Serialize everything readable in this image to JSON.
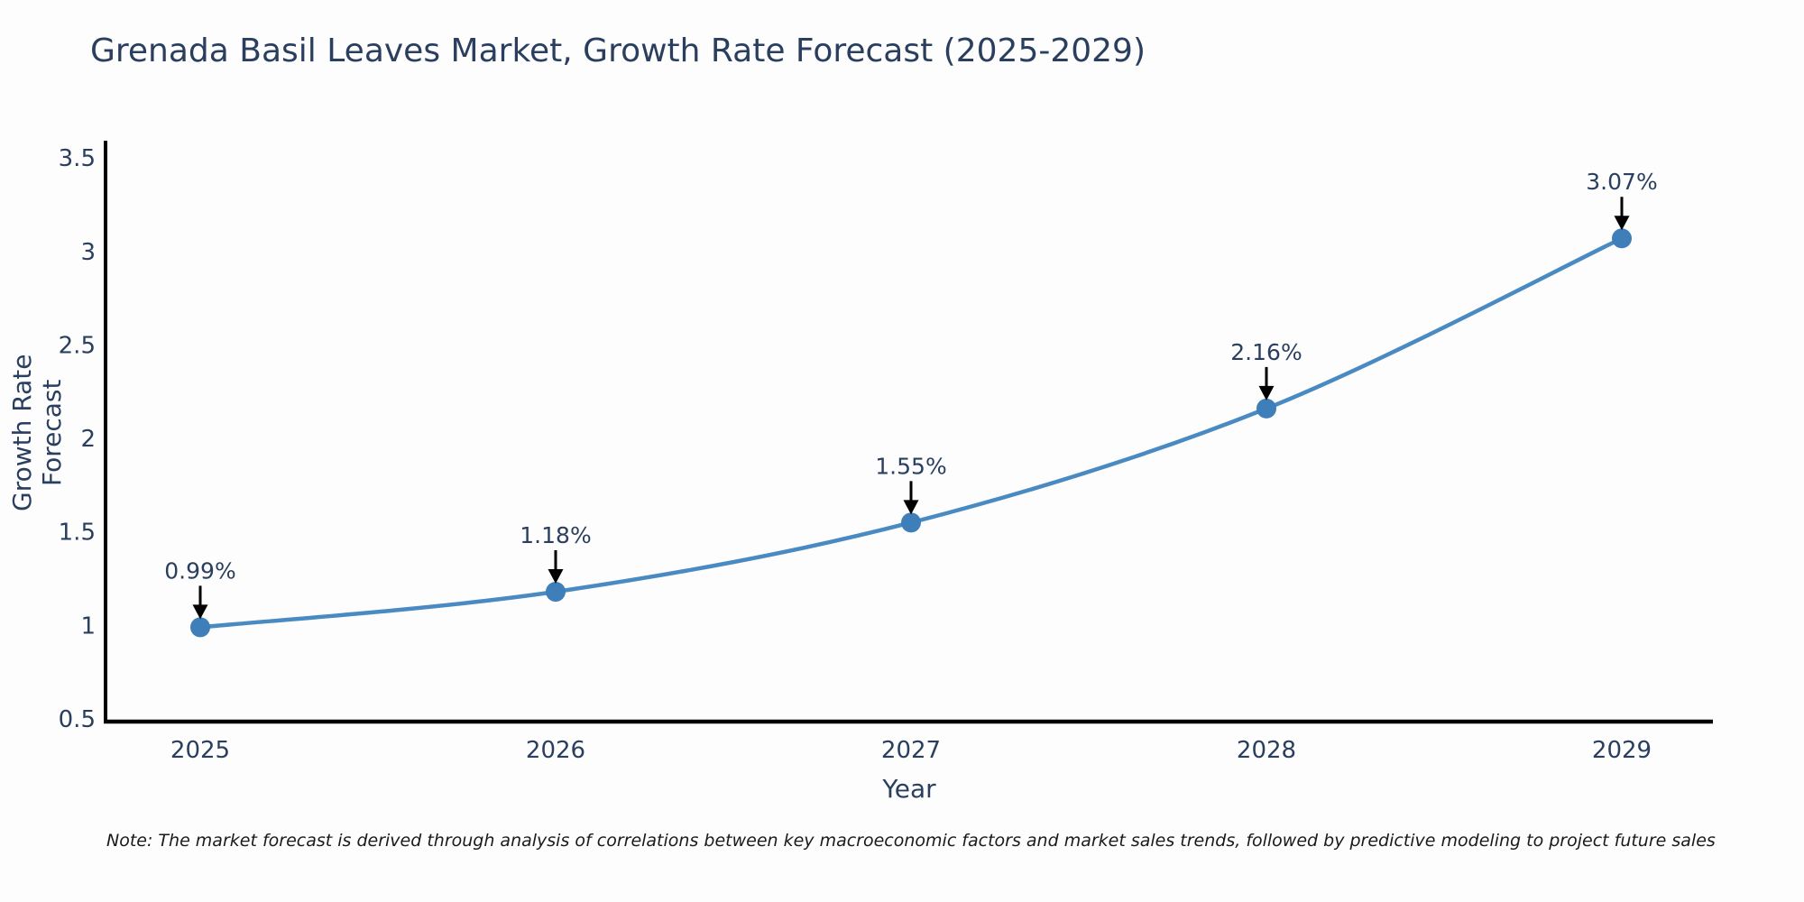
{
  "page": {
    "background": "#fdfdfd"
  },
  "note": "Note: The market forecast is derived through analysis of correlations between key macroeconomic factors and market sales trends, followed by predictive modeling to project future sales",
  "chart_data": {
    "type": "line",
    "title": "Grenada Basil Leaves Market, Growth Rate Forecast (2025-2029)",
    "xlabel": "Year",
    "ylabel": "Growth Rate Forecast",
    "x": [
      2025,
      2026,
      2027,
      2028,
      2029
    ],
    "y": [
      0.99,
      1.18,
      1.55,
      2.16,
      3.07
    ],
    "point_labels": [
      "0.99%",
      "1.18%",
      "1.55%",
      "2.16%",
      "3.07%"
    ],
    "ylim": [
      0.5,
      3.5
    ],
    "yticks": [
      0.5,
      1,
      1.5,
      2,
      2.5,
      3,
      3.5
    ],
    "ytick_labels": [
      "0.5",
      "1",
      "1.5",
      "2",
      "2.5",
      "3",
      "3.5"
    ],
    "xticks": [
      "2025",
      "2026",
      "2027",
      "2028",
      "2029"
    ],
    "grid": false,
    "legend": "none",
    "line_color": "#4a8ac2",
    "marker_color": "#3e7eb9",
    "axis_color": "#000000",
    "tick_color": "#2a3f5f",
    "title_color": "#2a3f5f",
    "annotation_color": "#2a3f5f",
    "annotation_arrow_color": "#000000"
  }
}
